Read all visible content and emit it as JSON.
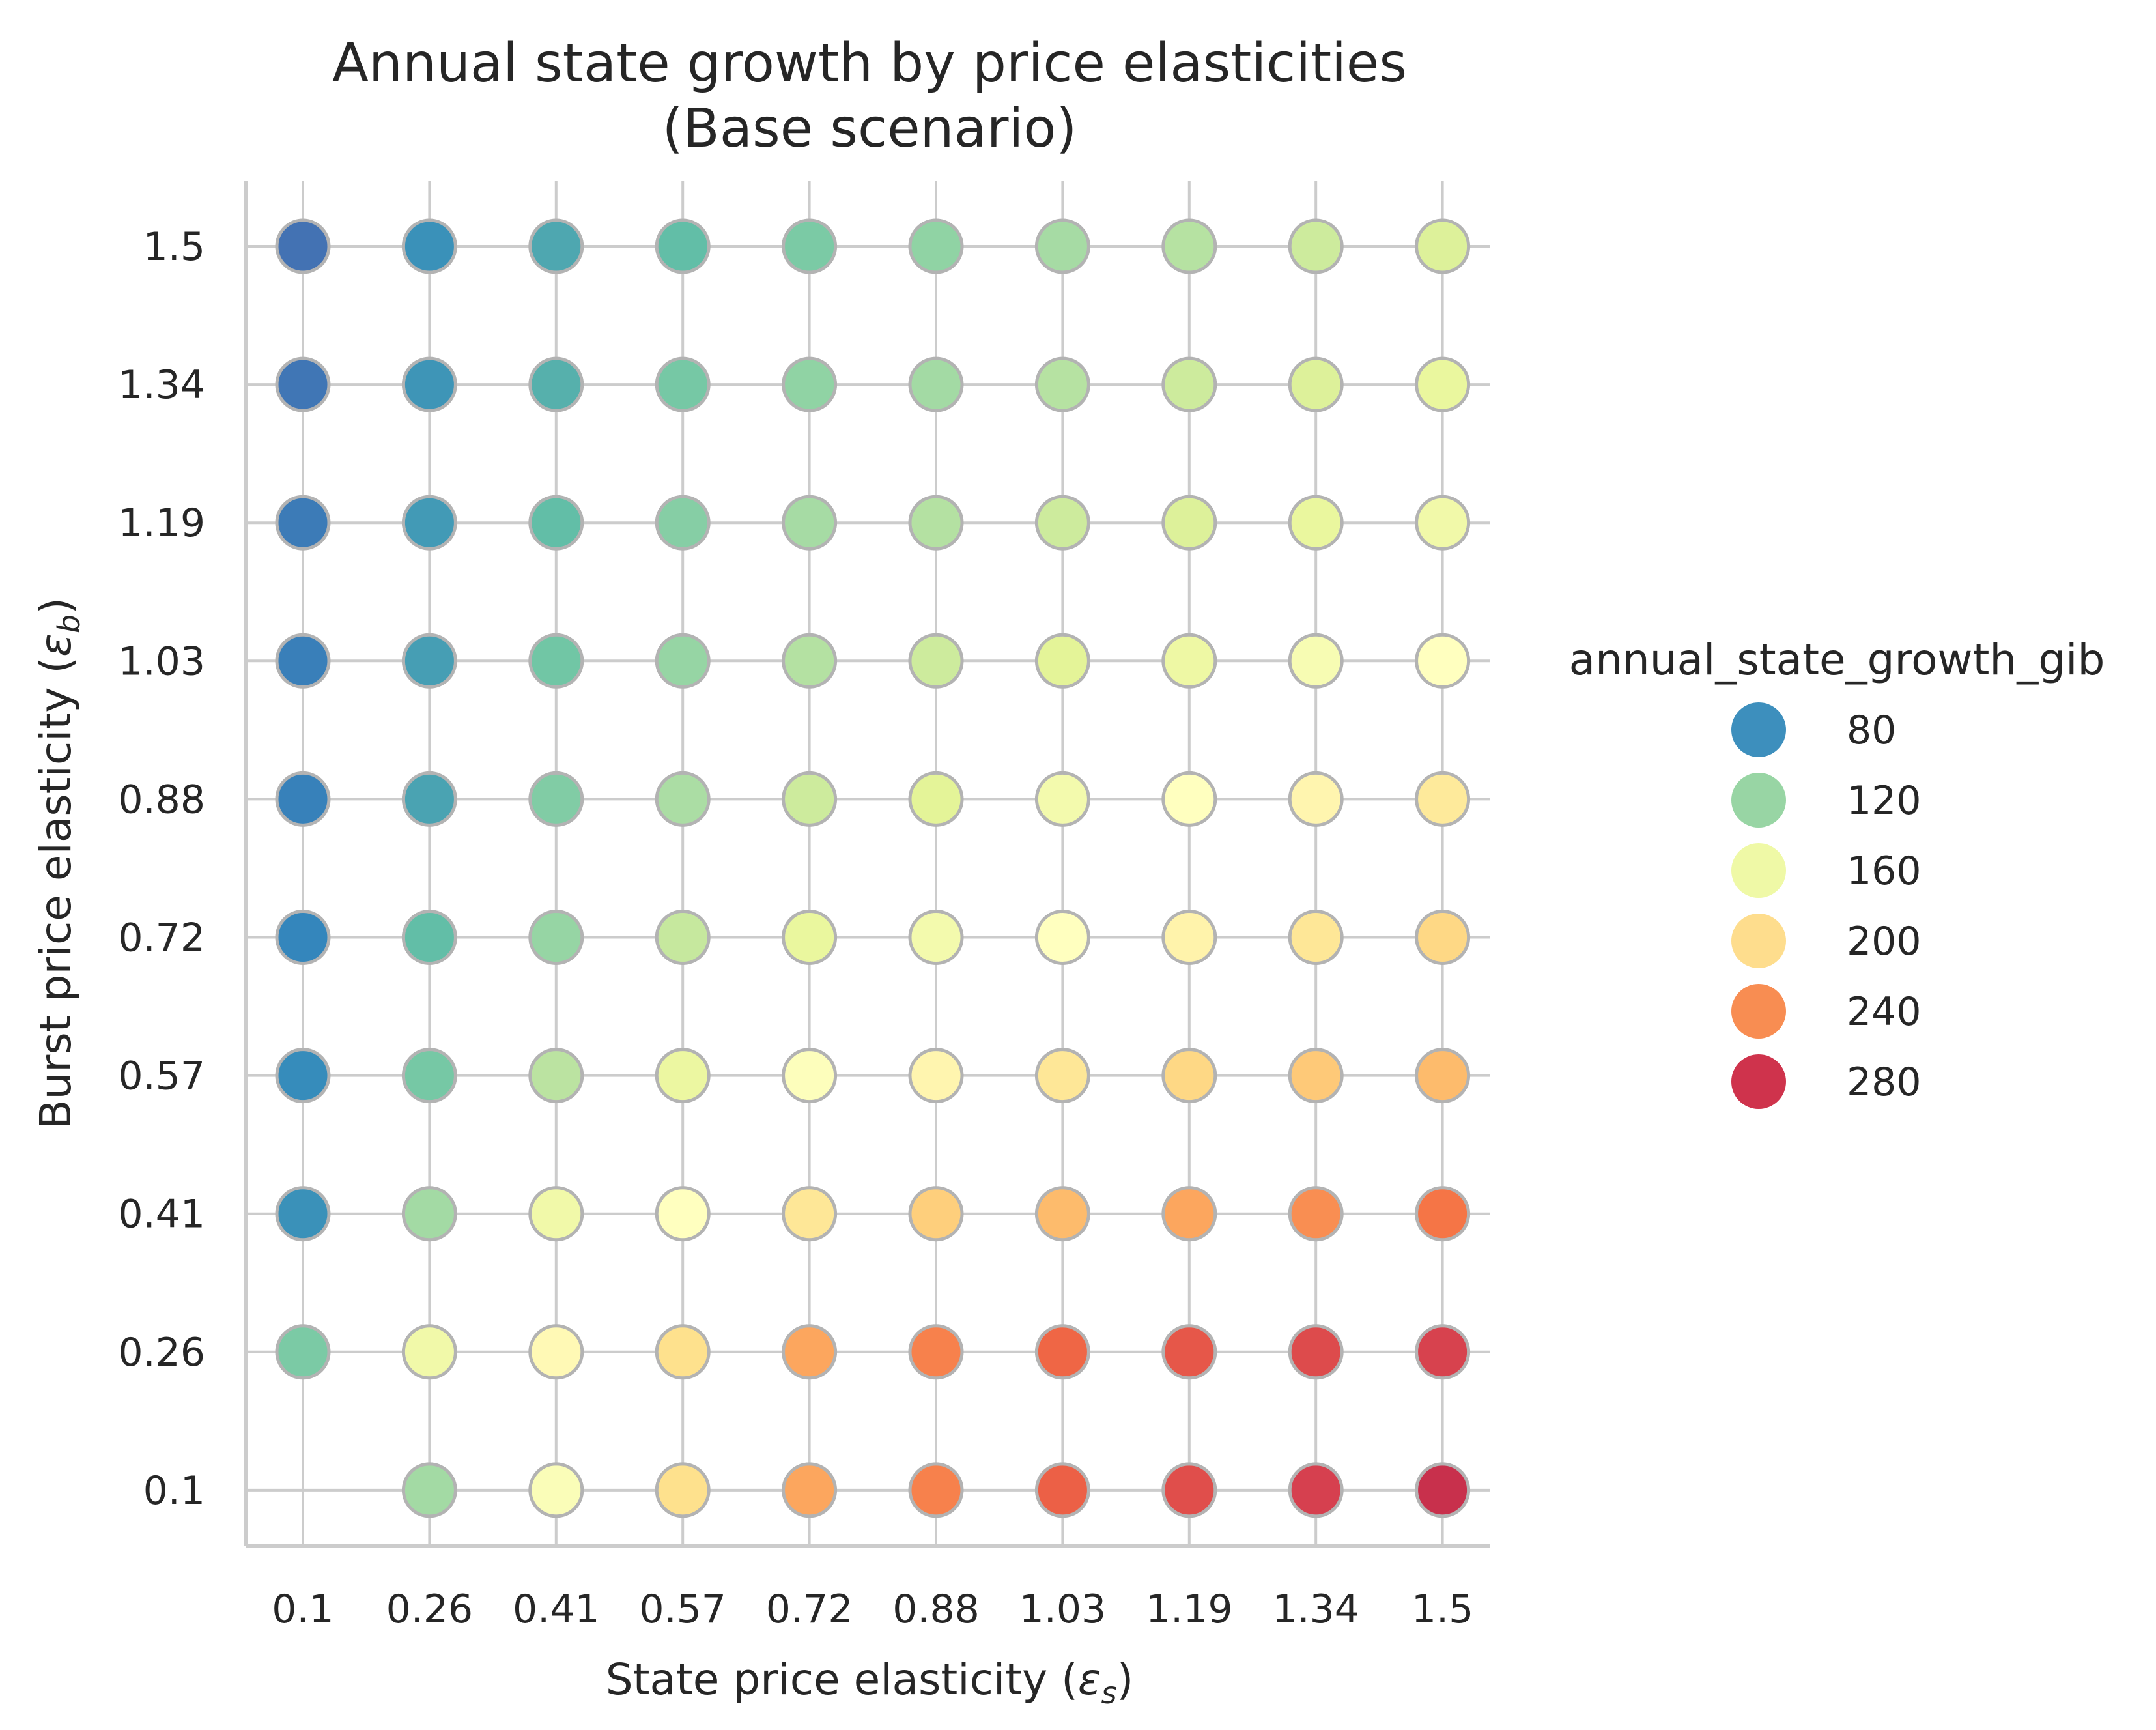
{
  "chart_data": {
    "type": "scatter",
    "title_line1": "Annual state growth by price elasticities",
    "title_line2": "(Base scenario)",
    "xlabel": "State price elasticity (",
    "xlabel_symbol": "ε",
    "xlabel_sub": "s",
    "xlabel_end": ")",
    "ylabel": "Burst price elasticity (",
    "ylabel_symbol": "ε",
    "ylabel_sub": "b",
    "ylabel_end": ")",
    "x_ticks": [
      "0.1",
      "0.26",
      "0.41",
      "0.57",
      "0.72",
      "0.88",
      "1.03",
      "1.19",
      "1.34",
      "1.5"
    ],
    "y_ticks": [
      "0.1",
      "0.26",
      "0.41",
      "0.57",
      "0.72",
      "0.88",
      "1.03",
      "1.19",
      "1.34",
      "1.5"
    ],
    "grid": true,
    "colormap": "Spectral_r",
    "color_range": [
      50,
      310
    ],
    "legend": {
      "title": "annual_state_growth_gib",
      "placement": "right",
      "entries": [
        {
          "label": "80",
          "value": 80,
          "color": "#3d8fbd"
        },
        {
          "label": "120",
          "value": 120,
          "color": "#98d5a4"
        },
        {
          "label": "160",
          "value": 160,
          "color": "#eff9a6"
        },
        {
          "label": "200",
          "value": 200,
          "color": "#fedd8d"
        },
        {
          "label": "240",
          "value": 240,
          "color": "#f88d52"
        },
        {
          "label": "280",
          "value": 280,
          "color": "#cf334c"
        }
      ]
    },
    "points": [
      [
        null,
        125,
        175,
        205,
        235,
        250,
        265,
        275,
        283,
        290
      ],
      [
        110,
        165,
        185,
        205,
        235,
        250,
        262,
        270,
        277,
        282
      ],
      [
        80,
        125,
        165,
        180,
        200,
        215,
        225,
        235,
        245,
        255
      ],
      [
        78,
        108,
        135,
        160,
        178,
        188,
        200,
        210,
        218,
        225
      ],
      [
        75,
        100,
        120,
        140,
        158,
        168,
        180,
        190,
        200,
        210
      ],
      [
        73,
        88,
        112,
        128,
        143,
        153,
        168,
        180,
        188,
        198
      ],
      [
        72,
        86,
        106,
        120,
        132,
        143,
        153,
        162,
        172,
        180
      ],
      [
        70,
        84,
        100,
        114,
        126,
        132,
        143,
        150,
        158,
        165
      ],
      [
        68,
        82,
        94,
        108,
        118,
        125,
        133,
        143,
        150,
        158
      ],
      [
        66,
        80,
        90,
        100,
        110,
        118,
        126,
        133,
        143,
        150
      ]
    ]
  }
}
